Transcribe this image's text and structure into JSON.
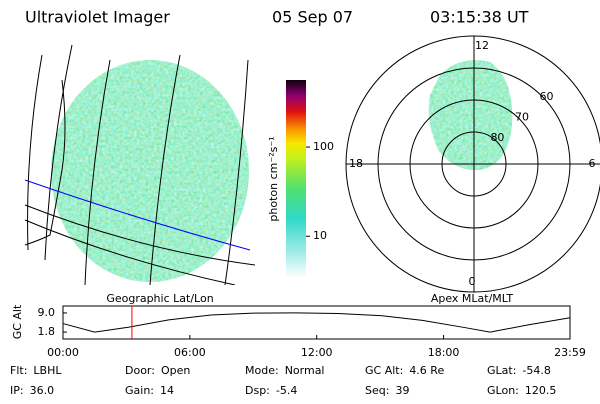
{
  "header": {
    "title": "Ultraviolet Imager",
    "date": "05 Sep 07",
    "time": "03:15:38 UT"
  },
  "images": {
    "left_caption": "Geographic Lat/Lon",
    "right_caption": "Apex MLat/MLT"
  },
  "colorbar": {
    "label": "photon cm⁻²s⁻¹",
    "ylim": [
      3.4,
      565
    ],
    "yticks": [
      10,
      100
    ],
    "log": true
  },
  "polar": {
    "rlim": [
      50,
      90
    ],
    "rticks": [
      60,
      70,
      80
    ],
    "thetaticks": [
      0,
      6,
      12,
      18
    ]
  },
  "chart_data": {
    "type": "line",
    "ylabel": "GC Alt",
    "x": [
      0,
      1.5,
      3,
      5,
      7,
      9,
      11,
      13,
      15,
      17,
      19,
      20.2,
      22,
      23.98
    ],
    "values": [
      5.0,
      1.8,
      3.5,
      6.4,
      8.2,
      8.9,
      9.0,
      8.8,
      8.0,
      6.2,
      3.5,
      1.8,
      4.5,
      7.2
    ],
    "color": "#000000",
    "xlim": [
      0,
      23.98
    ],
    "ylim": [
      -0.8,
      11.6
    ],
    "xticks": [
      {
        "value": 0,
        "label": "00:00"
      },
      {
        "value": 6,
        "label": "06:00"
      },
      {
        "value": 12,
        "label": "12:00"
      },
      {
        "value": 18,
        "label": "18:00"
      },
      {
        "value": 23.98,
        "label": "23:59"
      }
    ],
    "yticks": [
      {
        "value": 9,
        "label": "9.0"
      },
      {
        "value": 1.8,
        "label": "1.8"
      }
    ],
    "marker_x": 3.26,
    "marker_color": "#ff0000"
  },
  "footer": {
    "rows": [
      [
        [
          "Flt:",
          "LBHL"
        ],
        [
          "Door:",
          "Open"
        ],
        [
          "Mode:",
          "Normal"
        ],
        [
          "GC Alt:",
          "4.6 Re"
        ],
        [
          "GLat:",
          "-54.8"
        ]
      ],
      [
        [
          "IP:",
          "36.0"
        ],
        [
          "Gain:",
          "14"
        ],
        [
          "Dsp:",
          "-5.4"
        ],
        [
          "Seq:",
          "39"
        ],
        [
          "GLon:",
          "120.5"
        ]
      ]
    ]
  }
}
